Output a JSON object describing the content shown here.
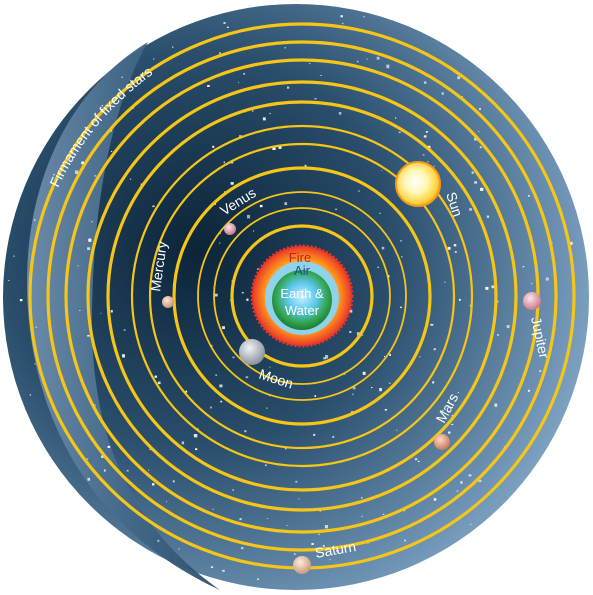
{
  "labels": {
    "firmament": "Firmament of fixed stars",
    "fire": "Fire",
    "air": "Air",
    "earth_line1": "Earth &",
    "earth_line2": "Water",
    "moon": "Moon",
    "mercury": "Mercury",
    "venus": "Venus",
    "sun": "Sun",
    "mars": "Mars",
    "jupiter": "Jupiter",
    "saturn": "Saturn"
  },
  "colors": {
    "orbit": "#f5c518",
    "sphere_dark": "#0e2c44",
    "sphere_light": "#7fa4c4",
    "fire": "#e8352a",
    "earth": "#2fa34a",
    "water": "#31a8d6"
  }
}
